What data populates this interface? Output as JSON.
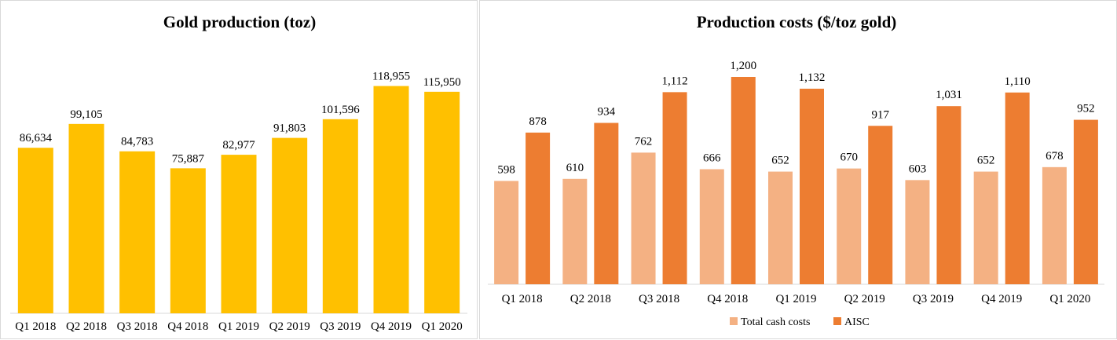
{
  "chart_data": [
    {
      "type": "bar",
      "title": "Gold production (toz)",
      "categories": [
        "Q1 2018",
        "Q2 2018",
        "Q3 2018",
        "Q4 2018",
        "Q1 2019",
        "Q2 2019",
        "Q3 2019",
        "Q4 2019",
        "Q1 2020"
      ],
      "series": [
        {
          "values": [
            86634,
            99105,
            84783,
            75887,
            82977,
            91803,
            101596,
            118955,
            115950
          ],
          "labels": [
            "86,634",
            "99,105",
            "84,783",
            "75,887",
            "82,977",
            "91,803",
            "101,596",
            "118,955",
            "115,950"
          ],
          "color": "#FFC000"
        }
      ],
      "ylim": [
        0,
        120000
      ],
      "grid": false,
      "legend": "none"
    },
    {
      "type": "bar",
      "title": "Production costs ($/toz gold)",
      "categories": [
        "Q1 2018",
        "Q2 2018",
        "Q3 2018",
        "Q4 2018",
        "Q1 2019",
        "Q2 2019",
        "Q3 2019",
        "Q4 2019",
        "Q1 2020"
      ],
      "series": [
        {
          "name": "Total cash costs",
          "values": [
            598,
            610,
            762,
            666,
            652,
            670,
            603,
            652,
            678
          ],
          "labels": [
            "598",
            "610",
            "762",
            "666",
            "652",
            "670",
            "603",
            "652",
            "678"
          ],
          "color": "#F4B183"
        },
        {
          "name": "AISC",
          "values": [
            878,
            934,
            1112,
            1200,
            1132,
            917,
            1031,
            1110,
            952
          ],
          "labels": [
            "878",
            "934",
            "1,112",
            "1,200",
            "1,132",
            "917",
            "1,031",
            "1,110",
            "952"
          ],
          "color": "#ED7D31"
        }
      ],
      "ylim": [
        0,
        1200
      ],
      "grid": false,
      "legend": "bottom"
    }
  ]
}
